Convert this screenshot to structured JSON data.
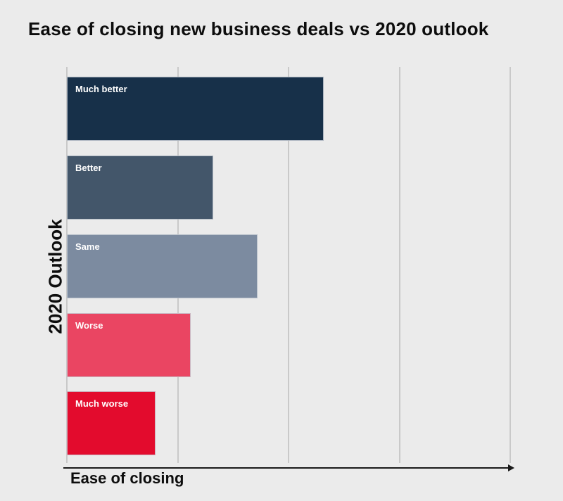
{
  "title": "Ease of closing new business deals vs 2020 outlook",
  "colors": {
    "background": "#ebebeb",
    "gridline": "#c9c9c9",
    "text": "#0d0d0d",
    "bar_label_text": "#ffffff",
    "axis_line": "#1a1a1a"
  },
  "chart_data": {
    "type": "bar",
    "orientation": "horizontal",
    "title": "Ease of closing new business deals vs 2020 outlook",
    "xlabel": "Ease of closing",
    "ylabel": "2020 Outlook",
    "categories": [
      "Much better",
      "Better",
      "Same",
      "Worse",
      "Much worse"
    ],
    "values": [
      58,
      33,
      43,
      28,
      20
    ],
    "values_unit": "percent-of-x-axis-span",
    "bar_colors": [
      "#173049",
      "#43566a",
      "#7c8ba0",
      "#ea4562",
      "#e30b2d"
    ],
    "bar_label_position": "inside-top-left",
    "x_axis": {
      "tick_labels_visible": false,
      "gridline_positions_pct": [
        0,
        25,
        50,
        75,
        100
      ],
      "arrow": "right"
    },
    "legend": "none",
    "grid": "vertical"
  }
}
